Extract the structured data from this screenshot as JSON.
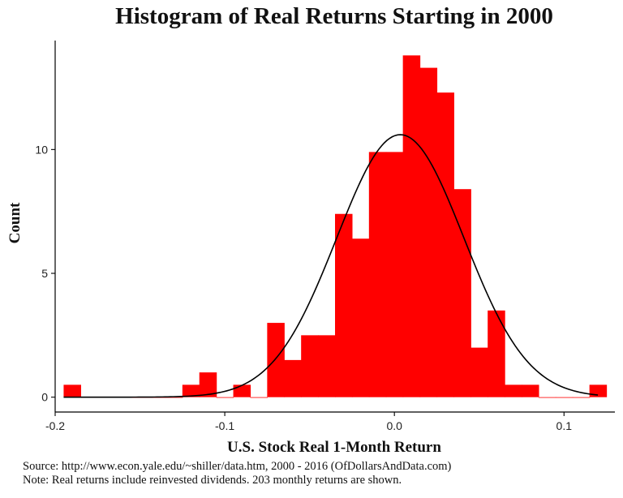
{
  "chart_data": {
    "type": "bar",
    "title": "Histogram of Real Returns Starting in 2000",
    "xlabel": "U.S. Stock Real 1-Month Return",
    "ylabel": "Count",
    "xlim": [
      -0.2,
      0.13
    ],
    "ylim": [
      -0.6,
      14.4
    ],
    "xticks": [
      -0.2,
      -0.1,
      0.0,
      0.1
    ],
    "xtick_labels": [
      "-0.2",
      "-0.1",
      "0.0",
      "0.1"
    ],
    "yticks": [
      0,
      5,
      10
    ],
    "ytick_labels": [
      "0",
      "5",
      "10"
    ],
    "bin_width": 0.01,
    "bar_color": "#ff0000",
    "curve_color": "#000000",
    "bins": [
      {
        "x": -0.19,
        "count": 0.5
      },
      {
        "x": -0.18,
        "count": 0
      },
      {
        "x": -0.17,
        "count": 0
      },
      {
        "x": -0.16,
        "count": 0
      },
      {
        "x": -0.15,
        "count": 0
      },
      {
        "x": -0.14,
        "count": 0
      },
      {
        "x": -0.13,
        "count": 0
      },
      {
        "x": -0.12,
        "count": 0.5
      },
      {
        "x": -0.11,
        "count": 1.0
      },
      {
        "x": -0.1,
        "count": 0
      },
      {
        "x": -0.09,
        "count": 0.5
      },
      {
        "x": -0.08,
        "count": 0
      },
      {
        "x": -0.07,
        "count": 3.0
      },
      {
        "x": -0.06,
        "count": 1.5
      },
      {
        "x": -0.05,
        "count": 2.5
      },
      {
        "x": -0.04,
        "count": 2.5
      },
      {
        "x": -0.03,
        "count": 7.4
      },
      {
        "x": -0.02,
        "count": 6.4
      },
      {
        "x": -0.01,
        "count": 9.9
      },
      {
        "x": 0.0,
        "count": 9.9
      },
      {
        "x": 0.01,
        "count": 13.8
      },
      {
        "x": 0.02,
        "count": 13.3
      },
      {
        "x": 0.03,
        "count": 12.3
      },
      {
        "x": 0.04,
        "count": 8.4
      },
      {
        "x": 0.05,
        "count": 2.0
      },
      {
        "x": 0.06,
        "count": 3.5
      },
      {
        "x": 0.07,
        "count": 0.5
      },
      {
        "x": 0.08,
        "count": 0.5
      },
      {
        "x": 0.09,
        "count": 0
      },
      {
        "x": 0.1,
        "count": 0
      },
      {
        "x": 0.11,
        "count": 0
      },
      {
        "x": 0.12,
        "count": 0.5
      }
    ],
    "density_curve": {
      "type": "normal",
      "mean": 0.0035,
      "sd": 0.0375,
      "peak": 10.6,
      "x_range": [
        -0.195,
        0.12
      ]
    }
  },
  "footer": {
    "source": "Source:  http://www.econ.yale.edu/~shiller/data.htm, 2000 - 2016 (OfDollarsAndData.com)",
    "note": "Note:  Real returns include reinvested dividends.  203 monthly returns are shown."
  }
}
